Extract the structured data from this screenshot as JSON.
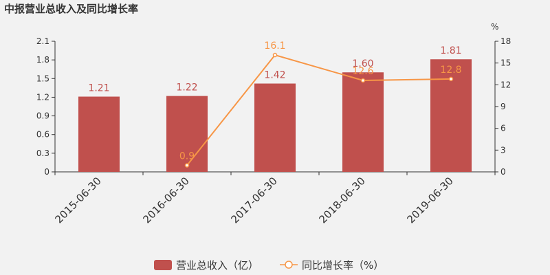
{
  "title": "中报营业总收入及同比增长率",
  "chart_data": {
    "type": "bar+line",
    "title": "中报营业总收入及同比增长率",
    "categories": [
      "2015-06-30",
      "2016-06-30",
      "2017-06-30",
      "2018-06-30",
      "2019-06-30"
    ],
    "series": [
      {
        "name": "营业总收入（亿）",
        "type": "bar",
        "axis": "left",
        "color": "#c0504d",
        "values": [
          1.21,
          1.22,
          1.42,
          1.6,
          1.81
        ],
        "labels": [
          "1.21",
          "1.22",
          "1.42",
          "1.60",
          "1.81"
        ]
      },
      {
        "name": "同比增长率（%）",
        "type": "line",
        "axis": "right",
        "color": "#f79646",
        "values": [
          null,
          0.9,
          16.1,
          12.6,
          12.8
        ],
        "labels": [
          "",
          "0.9",
          "16.1",
          "12.6",
          "12.8"
        ]
      }
    ],
    "y_left": {
      "ylim": [
        0,
        2.1
      ],
      "ticks": [
        "0",
        "0.3",
        "0.6",
        "0.9",
        "1.2",
        "1.5",
        "1.8",
        "2.1"
      ]
    },
    "y_right": {
      "unit": "%",
      "ylim": [
        0,
        18
      ],
      "ticks": [
        "0",
        "3",
        "6",
        "9",
        "12",
        "15",
        "18"
      ]
    },
    "grid": false,
    "legend": "bottom-center"
  }
}
